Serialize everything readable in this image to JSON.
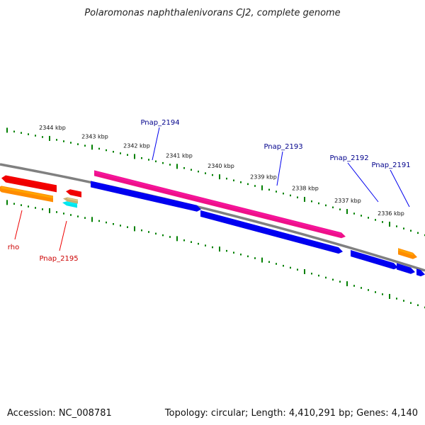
{
  "title": "Polaromonas naphthalenivorans CJ2, complete genome",
  "footer": {
    "accession": "Accession: NC_008781",
    "summary": "Topology: circular; Length: 4,410,291 bp; Genes: 4,140"
  },
  "colors": {
    "backbone": "#808080",
    "tick": "#008000",
    "label_forward": "#00008b",
    "label_reverse": "#cc0000",
    "gene_blue": "#0000ee",
    "gene_pink": "#ee1188",
    "gene_red": "#ee0000",
    "gene_orange": "#ff8c00",
    "gene_tan": "#c8b070",
    "gene_cyan": "#00e5ee"
  },
  "ticks": {
    "labels": [
      "2344 kbp",
      "2343 kbp",
      "2342 kbp",
      "2341 kbp",
      "2340 kbp",
      "2339 kbp",
      "2338 kbp",
      "2337 kbp",
      "2336 kbp"
    ]
  },
  "genes": {
    "labeled": [
      {
        "name": "Pnap_2194",
        "strand": "forward"
      },
      {
        "name": "Pnap_2193",
        "strand": "forward"
      },
      {
        "name": "Pnap_2192",
        "strand": "forward"
      },
      {
        "name": "Pnap_2191",
        "strand": "forward"
      },
      {
        "name": "rho",
        "strand": "reverse"
      },
      {
        "name": "Pnap_2195",
        "strand": "reverse"
      }
    ]
  }
}
